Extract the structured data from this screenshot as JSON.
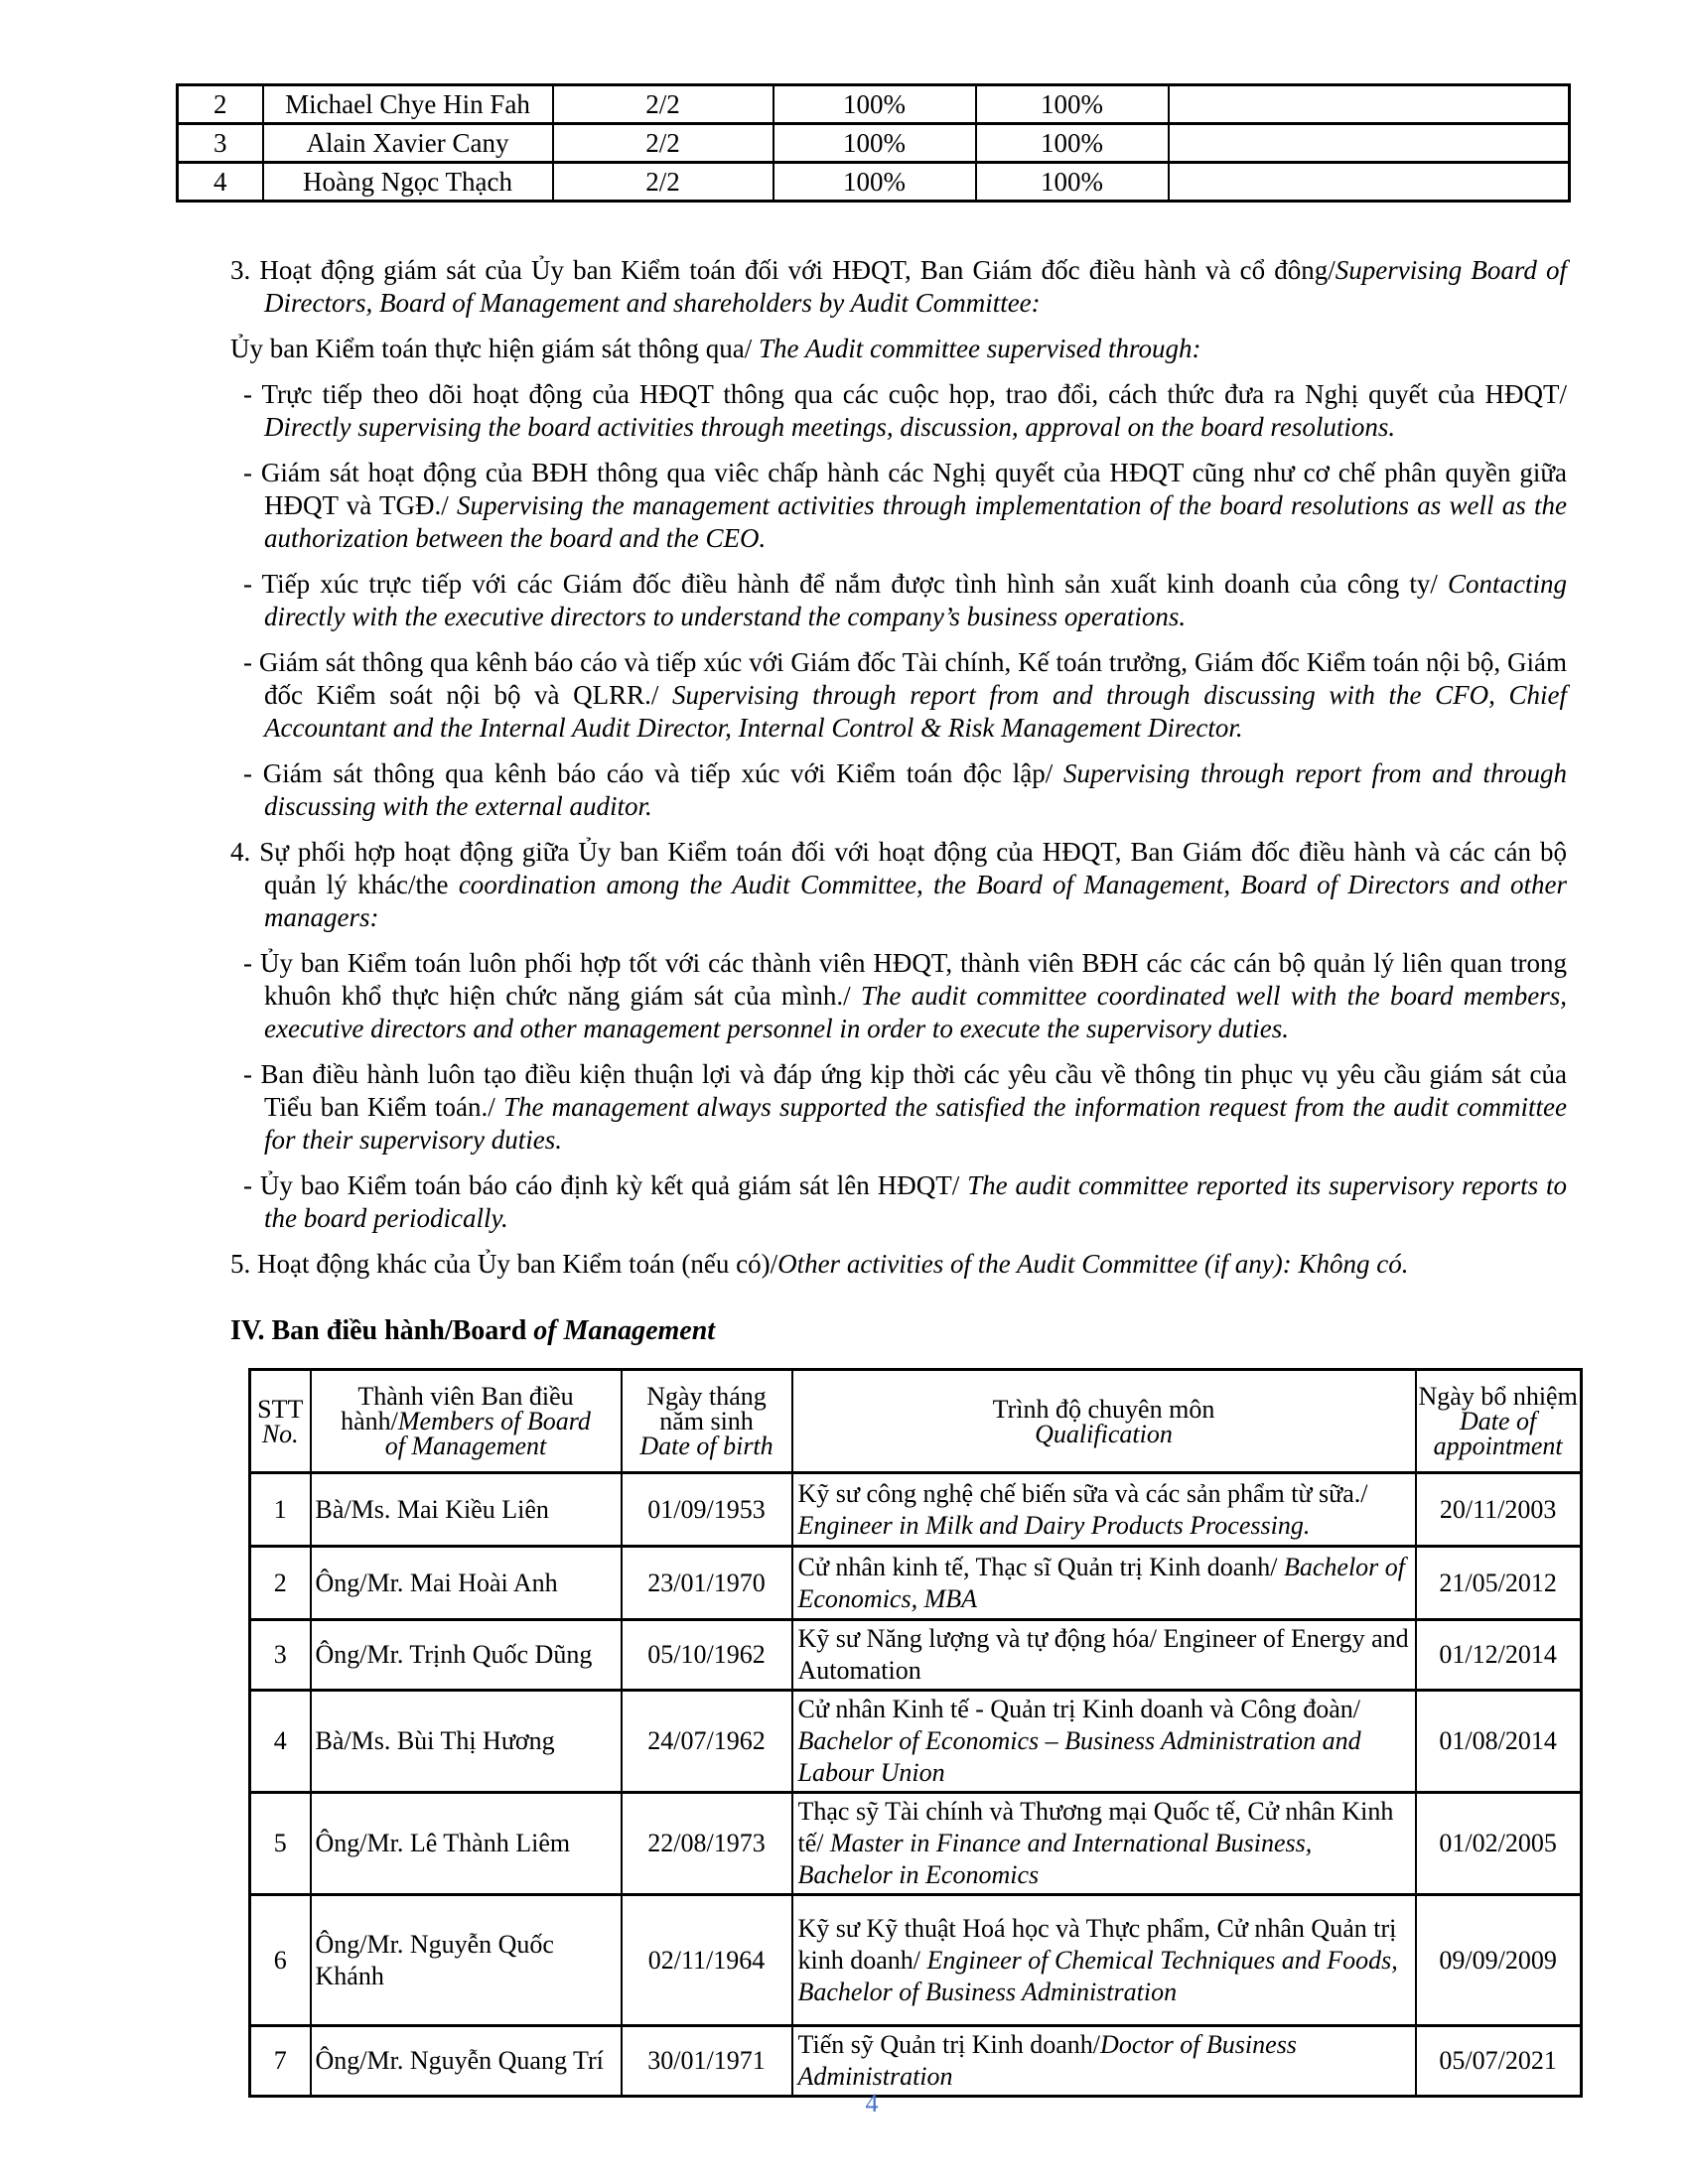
{
  "page": {
    "number": "4",
    "number_color": "#4472C4",
    "background": "#ffffff",
    "text_color": "#000000",
    "border_color": "#000000"
  },
  "attendance_table": {
    "columns": [
      "no",
      "name",
      "attended",
      "rate1",
      "rate2",
      "note"
    ],
    "rows": [
      {
        "no": "2",
        "name": "Michael Chye Hin Fah",
        "attended": "2/2",
        "rate1": "100%",
        "rate2": "100%",
        "note": ""
      },
      {
        "no": "3",
        "name": "Alain Xavier Cany",
        "attended": "2/2",
        "rate1": "100%",
        "rate2": "100%",
        "note": ""
      },
      {
        "no": "4",
        "name": "Hoàng Ngọc Thạch",
        "attended": "2/2",
        "rate1": "100%",
        "rate2": "100%",
        "note": ""
      }
    ]
  },
  "body_paragraphs": [
    {
      "id": "section-3-heading",
      "kind": "num",
      "segments": [
        {
          "t": "3. Hoạt động giám sát của Ủy ban Kiểm toán đối với HĐQT, Ban Giám đốc điều hành và cổ đông/"
        },
        {
          "t": "Supervising Board of Directors, Board of Management and shareholders by Audit Committee:",
          "i": true
        }
      ]
    },
    {
      "id": "audit-supervision-intro",
      "kind": "plain",
      "segments": [
        {
          "t": "Ủy ban Kiểm toán thực hiện giám sát thông qua/ "
        },
        {
          "t": "The Audit committee supervised through:",
          "i": true
        }
      ]
    },
    {
      "id": "bullet-direct-supervision",
      "kind": "dash",
      "segments": [
        {
          "t": "- Trực tiếp theo dõi hoạt động của HĐQT thông qua các cuộc họp, trao đổi, cách thức đưa ra Nghị quyết của HĐQT/ "
        },
        {
          "t": "Directly supervising the board activities through meetings, discussion, approval on the board resolutions.",
          "i": true
        }
      ]
    },
    {
      "id": "bullet-bdh-supervision",
      "kind": "dash",
      "segments": [
        {
          "t": "- Giám sát hoạt động của BĐH thông qua viêc chấp hành các Nghị quyết của HĐQT cũng như cơ chế phân quyền giữa HĐQT và TGĐ./ "
        },
        {
          "t": "Supervising the management activities through implementation of the board resolutions as well as the authorization between the board and the CEO.",
          "i": true
        }
      ]
    },
    {
      "id": "bullet-executive-contact",
      "kind": "dash",
      "segments": [
        {
          "t": "- Tiếp xúc trực tiếp với các Giám đốc điều hành để nắm được tình hình sản xuất kinh doanh của công ty/ "
        },
        {
          "t": "Contacting directly with the executive directors to understand the company’s business operations.",
          "i": true
        }
      ]
    },
    {
      "id": "bullet-report-cfo",
      "kind": "dash",
      "segments": [
        {
          "t": "- Giám sát thông qua kênh báo cáo và tiếp xúc với Giám đốc Tài chính, Kế toán trưởng, Giám đốc Kiểm toán nội bộ, Giám đốc Kiểm soát nội bộ và QLRR./ "
        },
        {
          "t": "Supervising through report from and through discussing with the CFO, Chief Accountant and the Internal Audit Director, Internal Control & Risk Management Director.",
          "i": true
        }
      ]
    },
    {
      "id": "bullet-external-auditor",
      "kind": "dash",
      "segments": [
        {
          "t": "- Giám sát thông qua kênh báo cáo và tiếp xúc với Kiểm toán độc lập/ "
        },
        {
          "t": "Supervising through report from and through discussing with the external auditor.",
          "i": true
        }
      ]
    },
    {
      "id": "section-4-heading",
      "kind": "num",
      "segments": [
        {
          "t": "4. Sự phối hợp hoạt động giữa Ủy ban Kiểm toán đối với hoạt động của HĐQT, Ban Giám đốc điều hành và các cán bộ quản lý khác/the "
        },
        {
          "t": "coordination among the Audit Committee, the Board of Management, Board of Directors and other managers:",
          "i": true
        }
      ]
    },
    {
      "id": "bullet-coordination",
      "kind": "dash",
      "segments": [
        {
          "t": "- Ủy ban Kiểm toán luôn phối hợp tốt với các thành viên HĐQT, thành viên BĐH các các cán bộ quản lý liên quan trong khuôn khổ thực hiện chức năng giám sát của mình./ "
        },
        {
          "t": "The audit committee coordinated well with the board members, executive directors and other management personnel in order to execute the supervisory duties.",
          "i": true
        }
      ]
    },
    {
      "id": "bullet-management-support",
      "kind": "dash",
      "segments": [
        {
          "t": "- Ban điều hành luôn tạo điều kiện thuận lợi và đáp ứng kịp thời các yêu cầu về thông tin phục vụ yêu cầu giám sát của Tiểu ban Kiểm toán./ "
        },
        {
          "t": "The management always supported the satisfied the information request from the audit committee for their supervisory duties.",
          "i": true
        }
      ]
    },
    {
      "id": "bullet-periodic-report",
      "kind": "dash",
      "segments": [
        {
          "t": "- Ủy bao Kiểm toán báo cáo định kỳ kết quả giám sát lên HĐQT/ "
        },
        {
          "t": "The audit committee reported its supervisory reports to the board periodically.",
          "i": true
        }
      ]
    },
    {
      "id": "section-5-heading",
      "kind": "num",
      "segments": [
        {
          "t": "5. Hoạt động khác của Ủy ban Kiểm toán (nếu có)/"
        },
        {
          "t": "Other activities of the Audit Committee (if any): Không có.",
          "i": true
        }
      ]
    }
  ],
  "section_iv": {
    "heading_segments": [
      {
        "t": "IV. Ban điều hành/Board ",
        "b": true
      },
      {
        "t": "of Management",
        "b": true,
        "i": true
      }
    ]
  },
  "management_table": {
    "header": [
      {
        "key": "no",
        "lines": [
          [
            {
              "t": "STT"
            }
          ],
          [
            {
              "t": "No.",
              "i": true
            }
          ]
        ]
      },
      {
        "key": "name",
        "lines": [
          [
            {
              "t": "Thành viên Ban điều"
            }
          ],
          [
            {
              "t": "hành/"
            },
            {
              "t": "Members of Board",
              "i": true
            }
          ],
          [
            {
              "t": "of Management",
              "i": true
            }
          ]
        ]
      },
      {
        "key": "dob",
        "lines": [
          [
            {
              "t": "Ngày tháng"
            }
          ],
          [
            {
              "t": "năm sinh"
            }
          ],
          [
            {
              "t": "Date of birth",
              "i": true
            }
          ]
        ]
      },
      {
        "key": "qualification",
        "lines": [
          [
            {
              "t": "Trình độ chuyên môn"
            }
          ],
          [
            {
              "t": "Qualification",
              "i": true
            }
          ]
        ]
      },
      {
        "key": "appointed",
        "lines": [
          [
            {
              "t": "Ngày bổ nhiệm"
            }
          ],
          [
            {
              "t": "Date of",
              "i": true
            }
          ],
          [
            {
              "t": "appointment",
              "i": true
            }
          ]
        ]
      }
    ],
    "rows": [
      {
        "no": "1",
        "name": "Bà/Ms. Mai Kiều Liên",
        "dob": "01/09/1953",
        "qualification": [
          {
            "t": "Kỹ sư công nghệ chế biến sữa và các sản phẩm từ sữa./ "
          },
          {
            "t": "Engineer in Milk and Dairy Products Processing.",
            "i": true
          }
        ],
        "appointed": "20/11/2003"
      },
      {
        "no": "2",
        "name": "Ông/Mr. Mai Hoài Anh",
        "dob": "23/01/1970",
        "qualification": [
          {
            "t": "Cử nhân kinh tế, Thạc sĩ Quản trị Kinh doanh/ "
          },
          {
            "t": "Bachelor of Economics, MBA",
            "i": true
          }
        ],
        "appointed": "21/05/2012"
      },
      {
        "no": "3",
        "name": "Ông/Mr. Trịnh Quốc Dũng",
        "dob": "05/10/1962",
        "qualification": [
          {
            "t": "Kỹ sư Năng lượng và tự động hóa/ Engineer of Energy and Automation"
          }
        ],
        "appointed": "01/12/2014"
      },
      {
        "no": "4",
        "name": "Bà/Ms. Bùi Thị Hương",
        "dob": "24/07/1962",
        "qualification": [
          {
            "t": "Cử nhân Kinh tế - Quản trị Kinh doanh và Công đoàn/ "
          },
          {
            "t": "Bachelor of Economics – Business Administration and Labour Union",
            "i": true
          }
        ],
        "appointed": "01/08/2014"
      },
      {
        "no": "5",
        "name": "Ông/Mr. Lê Thành Liêm",
        "dob": "22/08/1973",
        "qualification": [
          {
            "t": "Thạc sỹ Tài chính và Thương mại Quốc tế, Cử nhân Kinh tế/ "
          },
          {
            "t": "Master in Finance and International Business, Bachelor in Economics",
            "i": true
          }
        ],
        "appointed": "01/02/2005"
      },
      {
        "no": "6",
        "name": "Ông/Mr. Nguyễn Quốc Khánh",
        "dob": "02/11/1964",
        "qualification": [
          {
            "t": "Kỹ sư Kỹ thuật Hoá học và Thực phẩm, Cử nhân Quản trị kinh doanh/ "
          },
          {
            "t": "Engineer of Chemical Techniques and Foods, Bachelor of Business Administration",
            "i": true
          }
        ],
        "appointed": "09/09/2009"
      },
      {
        "no": "7",
        "name": "Ông/Mr. Nguyễn Quang Trí",
        "dob": "30/01/1971",
        "qualification": [
          {
            "t": "Tiến sỹ Quản trị Kinh doanh/"
          },
          {
            "t": "Doctor of Business Administration",
            "i": true
          }
        ],
        "appointed": "05/07/2021"
      }
    ]
  }
}
